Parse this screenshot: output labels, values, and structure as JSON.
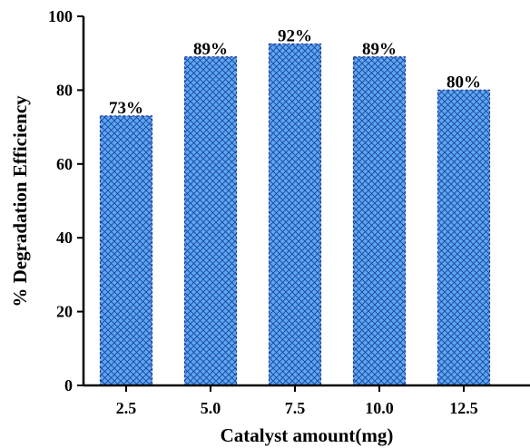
{
  "chart_data": {
    "type": "bar",
    "categories": [
      "2.5",
      "5.0",
      "7.5",
      "10.0",
      "12.5"
    ],
    "values": [
      73,
      89,
      92.5,
      89,
      80
    ],
    "data_labels": [
      "73%",
      "89%",
      "92%",
      "89%",
      "80%"
    ],
    "xlabel": "Catalyst amount(mg)",
    "ylabel": "% Degradation Efficiency",
    "ylim": [
      0,
      100
    ],
    "yticks": [
      "0",
      "20",
      "40",
      "60",
      "80",
      "100"
    ],
    "ytick_values": [
      0,
      20,
      40,
      60,
      80,
      100
    ],
    "grid": false,
    "colors": {
      "bar_fill": "#5aa9f0",
      "bar_hatch": "#1f3fa0",
      "axis": "#000000"
    }
  }
}
